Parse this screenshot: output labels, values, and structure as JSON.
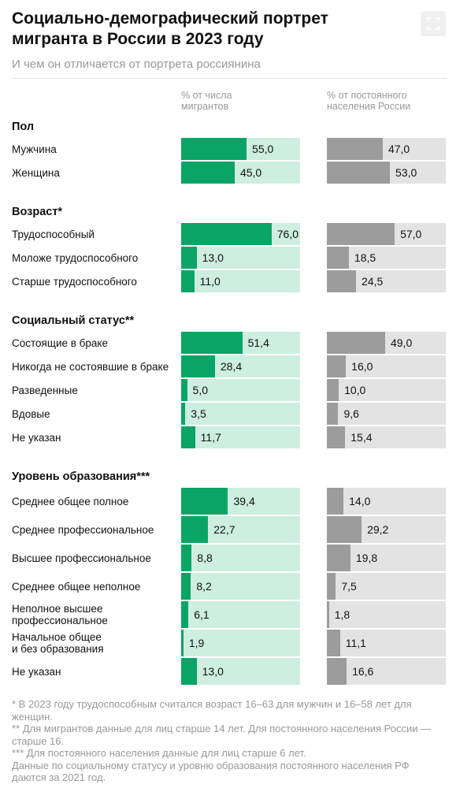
{
  "chart_data": {
    "type": "paired-bar-table",
    "title": "Социально-демографический портрет мигранта в России в 2023 году",
    "subtitle": "И чем он отличается от портрета россиянина",
    "column_headers": [
      "% от числа мигрантов",
      "% от постоянного населения России"
    ],
    "xlim": [
      0,
      100
    ],
    "colors": [
      "#0aa565",
      "#9c9c9c"
    ],
    "track_colors": [
      "#cdeee0",
      "#e3e3e3"
    ],
    "groups": [
      {
        "name": "Пол",
        "rows": [
          {
            "label": "Мужчина",
            "values": [
              55,
              47
            ],
            "value_labels": [
              "55,0",
              "47,0"
            ]
          },
          {
            "label": "Женщина",
            "values": [
              45,
              53
            ],
            "value_labels": [
              "45,0",
              "53,0"
            ]
          }
        ]
      },
      {
        "name": "Возраст*",
        "rows": [
          {
            "label": "Трудоспособный",
            "values": [
              76,
              57
            ],
            "value_labels": [
              "76,0",
              "57,0"
            ]
          },
          {
            "label": "Моложе трудоспособного",
            "values": [
              13,
              18.5
            ],
            "value_labels": [
              "13,0",
              "18,5"
            ]
          },
          {
            "label": "Старше трудоспособного",
            "values": [
              11,
              24.5
            ],
            "value_labels": [
              "11,0",
              "24,5"
            ]
          }
        ]
      },
      {
        "name": "Социальный статус**",
        "rows": [
          {
            "label": "Состоящие в браке",
            "values": [
              51.4,
              49
            ],
            "value_labels": [
              "51,4",
              "49,0"
            ]
          },
          {
            "label": "Никогда не состоявшие в браке",
            "values": [
              28.4,
              16
            ],
            "value_labels": [
              "28,4",
              "16,0"
            ]
          },
          {
            "label": "Разведенные",
            "values": [
              5,
              10
            ],
            "value_labels": [
              "5,0",
              "10,0"
            ]
          },
          {
            "label": "Вдовые",
            "values": [
              3.5,
              9.6
            ],
            "value_labels": [
              "3,5",
              "9,6"
            ]
          },
          {
            "label": "Не указан",
            "values": [
              11.7,
              15.4
            ],
            "value_labels": [
              "11,7",
              "15,4"
            ]
          }
        ]
      },
      {
        "name": "Уровень образования***",
        "rows": [
          {
            "label": "Среднее общее полное",
            "values": [
              39.4,
              14
            ],
            "value_labels": [
              "39,4",
              "14,0"
            ]
          },
          {
            "label": "Среднее профессиональное",
            "values": [
              22.7,
              29.2
            ],
            "value_labels": [
              "22,7",
              "29,2"
            ]
          },
          {
            "label": "Высшее профессиональное",
            "values": [
              8.8,
              19.8
            ],
            "value_labels": [
              "8,8",
              "19,8"
            ]
          },
          {
            "label": "Среднее общее неполное",
            "values": [
              8.2,
              7.5
            ],
            "value_labels": [
              "8,2",
              "7,5"
            ]
          },
          {
            "label": "Неполное высшее\nпрофессиональное",
            "values": [
              6.1,
              1.8
            ],
            "value_labels": [
              "6,1",
              "1,8"
            ]
          },
          {
            "label": "Начальное общее\nи без образования",
            "values": [
              1.9,
              11.1
            ],
            "value_labels": [
              "1,9",
              "11,1"
            ]
          },
          {
            "label": "Не указан",
            "values": [
              13,
              16.6
            ],
            "value_labels": [
              "13,0",
              "16,6"
            ]
          }
        ]
      }
    ],
    "notes": [
      "* В 2023 году трудоспособным считался возраст 16–63 для мужчин и 16–58 лет для женщин.",
      "** Для мигрантов данные для лиц старше 14 лет. Для постоянного населения России — старше 16.",
      "*** Для постоянного населения данные для лиц старше 6 лет.",
      "Данные по социальному статусу и уровню образования постоянного населения РФ даются за 2021 год."
    ]
  }
}
